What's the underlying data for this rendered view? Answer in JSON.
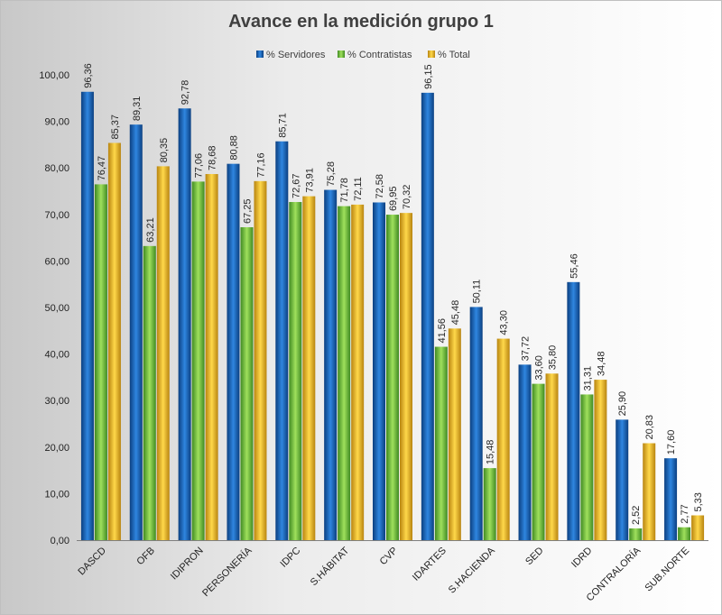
{
  "chart_data": {
    "type": "bar",
    "title": "Avance en la medición grupo 1",
    "categories": [
      "DASCD",
      "OFB",
      "IDIPRON",
      "PERSONERÍA",
      "IDPC",
      "S.HÁBITAT",
      "CVP",
      "IDARTES",
      "S.HACIENDA",
      "SED",
      "IDRD",
      "CONTRALORÍA",
      "SUB.NORTE"
    ],
    "series": [
      {
        "name": "% Servidores",
        "color": "#1F6FC5",
        "values": [
          96.36,
          89.31,
          92.78,
          80.88,
          85.71,
          75.28,
          72.58,
          96.15,
          50.11,
          37.72,
          55.46,
          25.9,
          17.6
        ],
        "labels": [
          "96,36",
          "89,31",
          "92,78",
          "80,88",
          "85,71",
          "75,28",
          "72,58",
          "96,15",
          "50,11",
          "37,72",
          "55,46",
          "25,90",
          "17,60"
        ]
      },
      {
        "name": "% Contratistas",
        "color": "#7CC242",
        "values": [
          76.47,
          63.21,
          77.06,
          67.25,
          72.67,
          71.78,
          69.95,
          41.56,
          15.48,
          33.6,
          31.31,
          2.52,
          2.77
        ],
        "labels": [
          "76,47",
          "63,21",
          "77,06",
          "67,25",
          "72,67",
          "71,78",
          "69,95",
          "41,56",
          "15,48",
          "33,60",
          "31,31",
          "2,52",
          "2,77"
        ]
      },
      {
        "name": "% Total",
        "color": "#F5BE25",
        "values": [
          85.37,
          80.35,
          78.68,
          77.16,
          73.91,
          72.11,
          70.32,
          45.48,
          43.3,
          35.8,
          34.48,
          20.83,
          5.33
        ],
        "labels": [
          "85,37",
          "80,35",
          "78,68",
          "77,16",
          "73,91",
          "72,11",
          "70,32",
          "45,48",
          "43,30",
          "35,80",
          "34,48",
          "20,83",
          "5,33"
        ]
      }
    ],
    "ylim": [
      0,
      100
    ],
    "yticks": [
      "0,00",
      "10,00",
      "20,00",
      "30,00",
      "40,00",
      "50,00",
      "60,00",
      "70,00",
      "80,00",
      "90,00",
      "100,00"
    ],
    "ytick_values": [
      0,
      10,
      20,
      30,
      40,
      50,
      60,
      70,
      80,
      90,
      100
    ],
    "legend_position": "top",
    "grid": false
  }
}
